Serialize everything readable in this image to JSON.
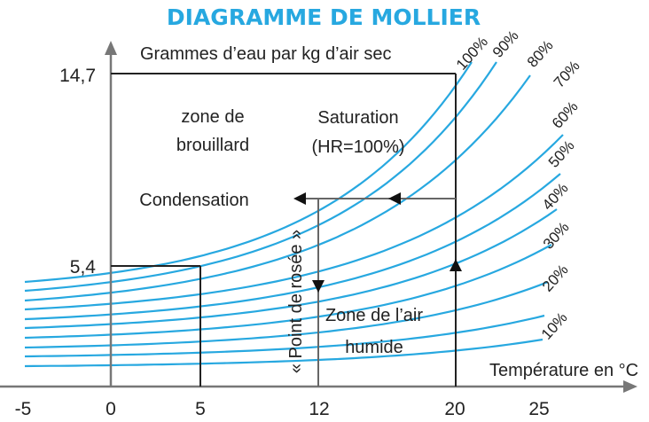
{
  "chart_data": {
    "type": "line",
    "title": "DIAGRAMME DE MOLLIER",
    "ylabel": "Grammes d’eau par kg d’air sec",
    "xlabel": "Température en °C",
    "x_ticks": [
      "-5",
      "0",
      "5",
      "12",
      "20",
      "25"
    ],
    "y_ticks": [
      "14,7",
      "5,4"
    ],
    "xlim": [
      -5,
      25
    ],
    "grid": false,
    "series": [
      {
        "name": "10%",
        "color": "#27a8e0"
      },
      {
        "name": "20%",
        "color": "#27a8e0"
      },
      {
        "name": "30%",
        "color": "#27a8e0"
      },
      {
        "name": "40%",
        "color": "#27a8e0"
      },
      {
        "name": "50%",
        "color": "#27a8e0"
      },
      {
        "name": "60%",
        "color": "#27a8e0"
      },
      {
        "name": "70%",
        "color": "#27a8e0"
      },
      {
        "name": "80%",
        "color": "#27a8e0"
      },
      {
        "name": "90%",
        "color": "#27a8e0"
      },
      {
        "name": "100%",
        "color": "#27a8e0"
      }
    ],
    "annotations": {
      "fog_zone_line1": "zone de",
      "fog_zone_line2": "brouillard",
      "saturation_line1": "Saturation",
      "saturation_line2": "(HR=100%)",
      "condensation": "Condensation",
      "dew_point": "« Point de rosée »",
      "humid_zone_line1": "Zone de l’air",
      "humid_zone_line2": "humide"
    },
    "reference_points": {
      "saturation_example": {
        "x": 20,
        "y": 14.7
      },
      "fog_example": {
        "x": 5,
        "y": 5.4
      },
      "dew_point_temp": 12,
      "start_temp": 20
    }
  }
}
